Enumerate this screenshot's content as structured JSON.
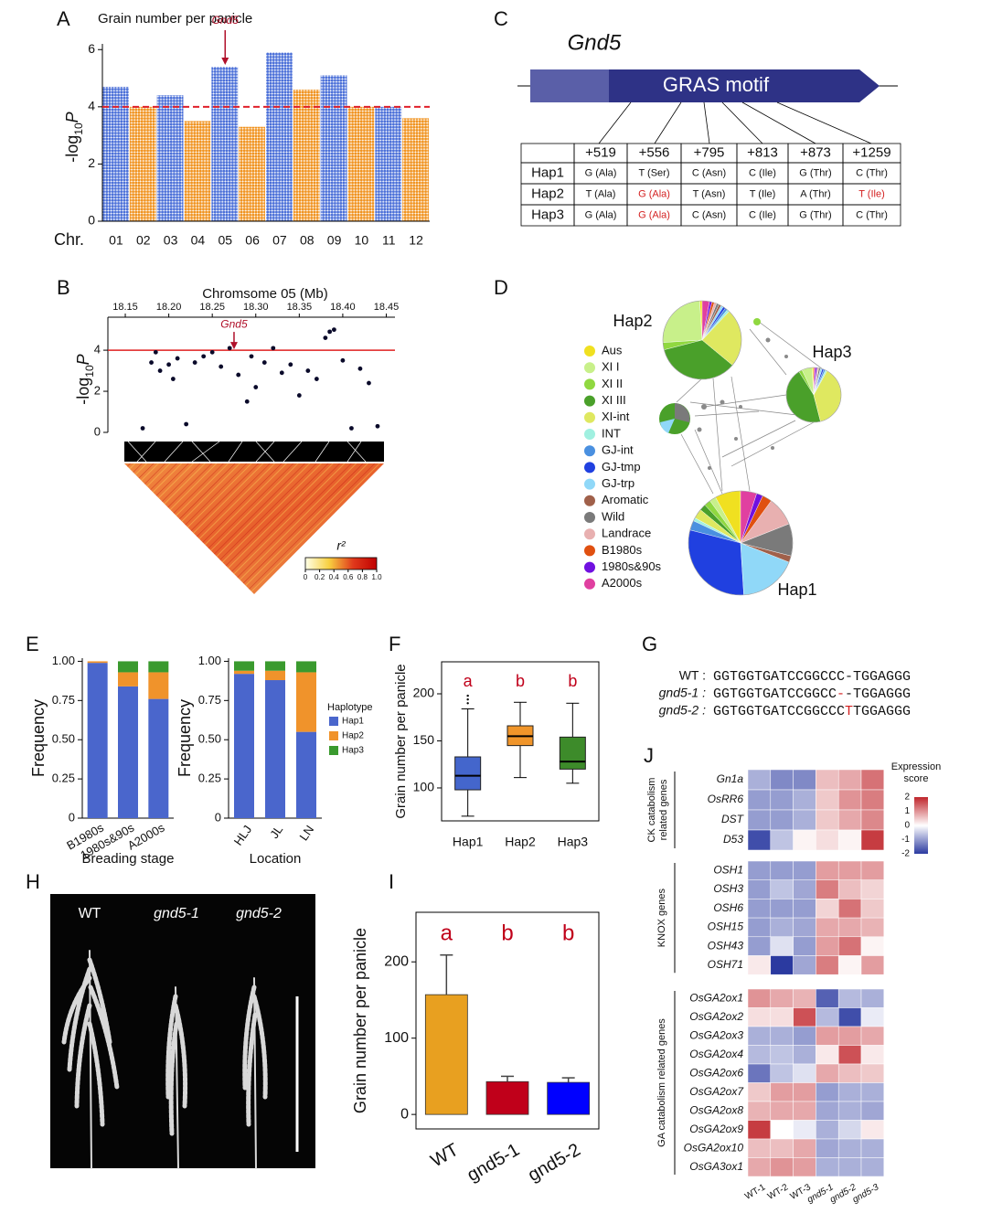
{
  "panel_labels": [
    "A",
    "B",
    "C",
    "D",
    "E",
    "F",
    "G",
    "H",
    "I",
    "J"
  ],
  "chart_data": [
    {
      "type": "manhattan",
      "title": "Grain number per panicle",
      "y_label": [
        "-log",
        "10",
        "P"
      ],
      "x_label": "Chr.",
      "categories": [
        "01",
        "02",
        "03",
        "04",
        "05",
        "06",
        "07",
        "08",
        "09",
        "10",
        "11",
        "12"
      ],
      "values": [
        4.7,
        4.0,
        4.4,
        3.5,
        5.4,
        3.3,
        5.9,
        4.6,
        5.1,
        4.0,
        4.0,
        3.6
      ],
      "colors": [
        "#4a6fd8",
        "#f0921e"
      ],
      "threshold": 4,
      "threshold_color": "#e0202a",
      "annotation": {
        "text": "Gnd5",
        "category": "05",
        "color": "#b0102a"
      },
      "ylim": [
        0,
        6.2
      ],
      "yticks": [
        0,
        2,
        4,
        6
      ]
    },
    {
      "type": "scatter",
      "title": "Chromsome 05 (Mb)",
      "y_label": [
        "-log",
        "10",
        "P"
      ],
      "x": [
        18.17,
        18.18,
        18.185,
        18.19,
        18.2,
        18.205,
        18.21,
        18.22,
        18.23,
        18.24,
        18.25,
        18.26,
        18.27,
        18.28,
        18.29,
        18.295,
        18.3,
        18.31,
        18.32,
        18.33,
        18.34,
        18.35,
        18.36,
        18.37,
        18.38,
        18.385,
        18.39,
        18.4,
        18.41,
        18.42,
        18.43,
        18.44
      ],
      "y": [
        0.2,
        3.4,
        3.9,
        3.0,
        3.3,
        2.6,
        3.6,
        0.4,
        3.4,
        3.7,
        3.9,
        3.2,
        4.1,
        2.8,
        1.5,
        3.7,
        2.2,
        3.4,
        4.1,
        2.9,
        3.3,
        1.8,
        3.0,
        2.6,
        4.6,
        4.9,
        5.0,
        3.5,
        0.2,
        3.1,
        2.4,
        0.3
      ],
      "color": "#0a0a2a",
      "threshold": 4,
      "threshold_color": "#e02020",
      "annotation": {
        "text": "Gnd5",
        "x": 18.275,
        "color": "#b0102a"
      },
      "xlim": [
        18.13,
        18.46
      ],
      "xticks": [
        18.15,
        {
          "value": 18.2,
          "label": "18.20"
        },
        18.25,
        {
          "value": 18.3,
          "label": "18.30"
        },
        18.35,
        {
          "value": 18.4,
          "label": "18.40"
        },
        18.45
      ],
      "ylim": [
        0,
        5.25
      ],
      "yticks": [
        0,
        2,
        4
      ],
      "colorbar": {
        "label": "r²",
        "ticks": [
          0,
          0.2,
          0.4,
          0.6,
          0.8,
          {
            "value": 1,
            "label": "1.0"
          }
        ],
        "colors": [
          "#ffffe8",
          "#f8d040",
          "#e03a1c",
          "#c00000"
        ]
      }
    },
    {
      "type": "pie",
      "categories": [
        "Aus",
        "XI I",
        "XI II",
        "XI III",
        "XI-int",
        "INT",
        "GJ-int",
        "GJ-tmp",
        "GJ-trp",
        "Aromatic",
        "Wild",
        "Landrace",
        "B1980s",
        "1980s&90s",
        "A2000s"
      ],
      "colors": [
        "#f0e020",
        "#c8f08a",
        "#90d840",
        "#4aa02a",
        "#dfe860",
        "#a0f0e0",
        "#4a90e0",
        "#2040e0",
        "#90d8f8",
        "#a0604a",
        "#7a7a7a",
        "#e8b0b0",
        "#e05010",
        "#7010e0",
        "#e040a0"
      ],
      "pies": [
        {
          "name": "Hap2",
          "values": [
            1,
            25,
            3,
            35,
            24,
            1,
            1,
            1,
            1,
            1,
            1,
            1,
            1,
            1,
            3
          ]
        },
        {
          "name": "Hap3",
          "values": [
            1,
            6,
            2,
            45,
            38,
            1,
            1,
            1,
            1,
            0,
            1,
            1,
            0,
            1,
            1
          ]
        },
        {
          "name": "Hap1",
          "values": [
            8,
            2,
            2,
            2,
            3,
            1,
            3,
            30,
            18,
            2,
            10,
            9,
            3,
            2,
            5
          ]
        }
      ]
    },
    {
      "type": "bar",
      "stacked": true,
      "categories": [
        "B1980s",
        "1980s&90s",
        "A2000s"
      ],
      "series": [
        {
          "name": "Hap1",
          "color": "#4a66cc",
          "values": [
            0.99,
            0.84,
            0.76
          ]
        },
        {
          "name": "Hap2",
          "color": "#f0932b",
          "values": [
            0.01,
            0.09,
            0.17
          ]
        },
        {
          "name": "Hap3",
          "color": "#3a9a2e",
          "values": [
            0,
            0.07,
            0.07
          ]
        }
      ],
      "x_label": "Breading stage",
      "y_label": "Frequency",
      "ylim": [
        0,
        1.02
      ],
      "yticks": [
        0,
        0.25,
        {
          "value": 0.5,
          "label": "0.50"
        },
        0.75,
        {
          "value": 1,
          "label": "1.00"
        }
      ]
    },
    {
      "type": "bar",
      "stacked": true,
      "categories": [
        "HLJ",
        "JL",
        "LN"
      ],
      "series": [
        {
          "name": "Hap1",
          "color": "#4a66cc",
          "values": [
            0.92,
            0.88,
            0.55
          ]
        },
        {
          "name": "Hap2",
          "color": "#f0932b",
          "values": [
            0.02,
            0.06,
            0.38
          ]
        },
        {
          "name": "Hap3",
          "color": "#3a9a2e",
          "values": [
            0.06,
            0.06,
            0.07
          ]
        }
      ],
      "x_label": "Location",
      "y_label": "Frequency",
      "legend_title": "Haplotype",
      "ylim": [
        0,
        1.02
      ],
      "yticks": [
        0,
        0.25,
        {
          "value": 0.5,
          "label": "0.50"
        },
        0.75,
        {
          "value": 1,
          "label": "1.00"
        }
      ]
    },
    {
      "type": "box",
      "categories": [
        "Hap1",
        "Hap2",
        "Hap3"
      ],
      "boxes": [
        {
          "min": 70,
          "q1": 98,
          "median": 113,
          "q3": 133,
          "max": 184,
          "outliers": [
            190,
            194,
            198
          ],
          "color": "#4466cc"
        },
        {
          "min": 111,
          "q1": 145,
          "median": 155,
          "q3": 166,
          "max": 191,
          "outliers": [],
          "color": "#f0952a"
        },
        {
          "min": 105,
          "q1": 120,
          "median": 128,
          "q3": 154,
          "max": 190,
          "outliers": [],
          "color": "#3d8b2a"
        }
      ],
      "letters": [
        "a",
        "b",
        "b"
      ],
      "letter_color": "#c0001a",
      "y_label": "Grain number per panicle",
      "ylim": [
        65,
        234
      ],
      "yticks": [
        100,
        150,
        200
      ]
    },
    {
      "type": "bar",
      "categories": [
        "WT",
        "gnd5-1",
        "gnd5-2"
      ],
      "values": [
        157,
        43,
        42
      ],
      "errors": [
        52,
        7,
        6
      ],
      "colors": [
        "#e8a020",
        "#c0001a",
        "#0000ff"
      ],
      "letters": [
        "a",
        "b",
        "b"
      ],
      "letter_color": "#c0001a",
      "y_label": "Grain number per panicle",
      "ylim": [
        -19,
        265
      ],
      "yticks": [
        0,
        100,
        200
      ]
    },
    {
      "type": "heatmap",
      "columns": [
        "WT-1",
        "WT-2",
        "WT-3",
        "gnd5-1",
        "gnd5-2",
        "gnd5-3"
      ],
      "groups": [
        {
          "name": [
            "CK catabolism",
            "related genes"
          ],
          "rows": [
            "Gn1a",
            "OsRR6",
            "DST",
            "D53"
          ],
          "values": [
            [
              -0.8,
              -1.2,
              -1.2,
              0.6,
              0.8,
              1.3
            ],
            [
              -1.0,
              -1.0,
              -0.8,
              0.5,
              1.0,
              1.2
            ],
            [
              -1.0,
              -1.0,
              -0.8,
              0.5,
              0.8,
              1.1
            ],
            [
              -1.8,
              -0.6,
              0.1,
              0.3,
              0.1,
              1.8
            ]
          ]
        },
        {
          "name": [
            "KNOX genes"
          ],
          "rows": [
            "OSH1",
            "OSH3",
            "OSH6",
            "OSH15",
            "OSH43",
            "OSH71"
          ],
          "values": [
            [
              -1.0,
              -1.0,
              -1.0,
              0.9,
              0.9,
              0.9
            ],
            [
              -1.0,
              -0.6,
              -0.9,
              1.2,
              0.6,
              0.4
            ],
            [
              -1.0,
              -1.0,
              -1.0,
              0.4,
              1.3,
              0.5
            ],
            [
              -1.0,
              -0.8,
              -0.9,
              0.8,
              0.8,
              0.7
            ],
            [
              -1.0,
              -0.3,
              -1.0,
              0.9,
              1.3,
              0.1
            ],
            [
              0.2,
              -2.0,
              -0.9,
              1.2,
              0.1,
              0.9
            ]
          ]
        },
        {
          "name": [
            "GA catabolism related genes"
          ],
          "rows": [
            "OsGA2ox1",
            "OsGA2ox2",
            "OsGA2ox3",
            "OsGA2ox4",
            "OsGA2ox6",
            "OsGA2ox7",
            "OsGA2ox8",
            "OsGA2ox9",
            "OsGA2ox10",
            "OsGA3ox1"
          ],
          "values": [
            [
              1.0,
              0.8,
              0.7,
              -1.6,
              -0.7,
              -0.8
            ],
            [
              0.3,
              0.3,
              1.6,
              -0.7,
              -1.8,
              -0.2
            ],
            [
              -0.8,
              -0.8,
              -1.0,
              0.9,
              0.9,
              0.8
            ],
            [
              -0.7,
              -0.6,
              -0.8,
              0.2,
              1.6,
              0.2
            ],
            [
              -1.4,
              -0.6,
              -0.3,
              0.8,
              0.6,
              0.5
            ],
            [
              0.5,
              0.9,
              0.9,
              -1.0,
              -0.8,
              -0.8
            ],
            [
              0.7,
              0.8,
              0.8,
              -0.9,
              -0.8,
              -0.9
            ],
            [
              1.8,
              0.0,
              -0.2,
              -0.8,
              -0.4,
              0.2
            ],
            [
              0.6,
              0.6,
              0.8,
              -0.9,
              -0.8,
              -0.8
            ],
            [
              0.8,
              1.0,
              0.9,
              -0.8,
              -0.8,
              -0.8
            ]
          ]
        }
      ],
      "legend_title": [
        "Expression",
        "score"
      ],
      "zlim": [
        -2,
        2
      ],
      "scale_ticks": [
        2,
        1,
        0,
        -1,
        -2
      ],
      "colors": [
        "#2b3aa0",
        "#ffffff",
        "#c0262c"
      ]
    }
  ],
  "panel_c": {
    "gene": "Gnd5",
    "motif": "GRAS motif",
    "columns": [
      "+519",
      "+556",
      "+795",
      "+813",
      "+873",
      "+1259"
    ],
    "rows": [
      {
        "name": "Hap1",
        "cells": [
          "G (Ala)",
          "T (Ser)",
          "C (Asn)",
          "C (Ile)",
          "G (Thr)",
          "C (Thr)"
        ]
      },
      {
        "name": "Hap2",
        "cells": [
          "T (Ala)",
          {
            "text": "G (Ala)",
            "color": "#d42020"
          },
          "T (Asn)",
          "T (Ile)",
          "A (Thr)",
          {
            "text": "T (Ile)",
            "color": "#d42020"
          }
        ]
      },
      {
        "name": "Hap3",
        "cells": [
          "G (Ala)",
          {
            "text": "G (Ala)",
            "color": "#d42020"
          },
          "C (Asn)",
          "C (Ile)",
          "G (Thr)",
          "C (Thr)"
        ]
      }
    ]
  },
  "panel_g": {
    "rows": [
      {
        "label": "WT :",
        "parts": [
          {
            "text": "GGTGGTGATCCGGCCC-TGGAGGG"
          }
        ]
      },
      {
        "label": "gnd5-1 :",
        "parts": [
          {
            "text": "GGTGGTGATCCGGCC"
          },
          {
            "text": "-",
            "color": "#d42020"
          },
          {
            "text": "-TGGAGGG"
          }
        ]
      },
      {
        "label": "gnd5-2 :",
        "parts": [
          {
            "text": "GGTGGTGATCCGGCCC"
          },
          {
            "text": "T",
            "color": "#d42020"
          },
          {
            "text": "TGGAGGG"
          }
        ]
      }
    ]
  },
  "panel_h": {
    "labels": [
      "WT",
      "gnd5-1",
      "gnd5-2"
    ]
  }
}
